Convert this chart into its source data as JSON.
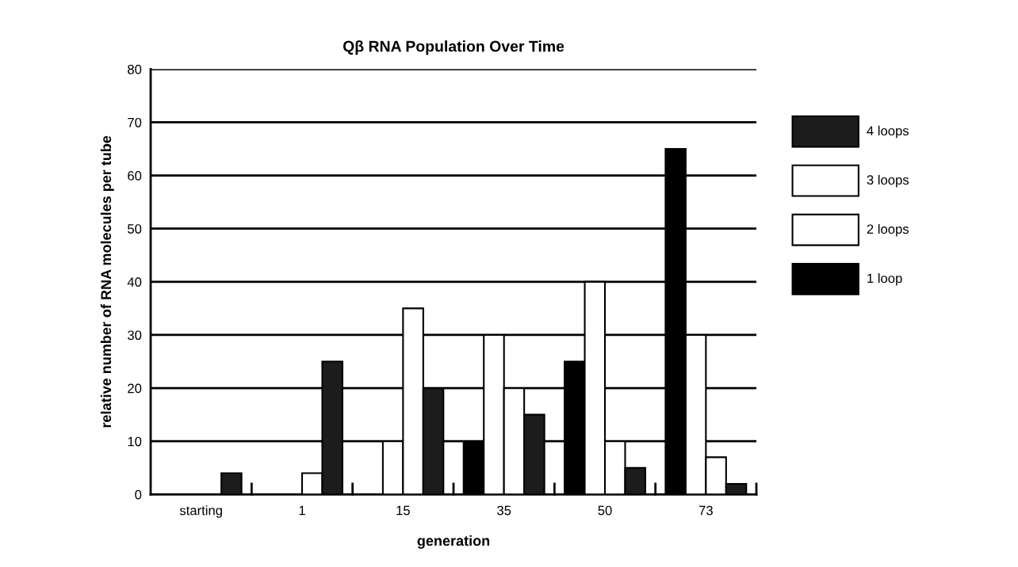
{
  "chart_data": {
    "type": "bar",
    "title": "Qβ RNA Population Over Time",
    "xlabel": "generation",
    "ylabel": "relative number of RNA molecules per tube",
    "categories": [
      "starting",
      "1",
      "15",
      "35",
      "50",
      "73"
    ],
    "series": [
      {
        "name": "1 loop",
        "color": "#000000",
        "values": [
          0,
          0,
          0,
          10,
          25,
          65
        ]
      },
      {
        "name": "2 loops",
        "color": "#ffffff",
        "values": [
          0,
          0,
          10,
          30,
          40,
          30
        ]
      },
      {
        "name": "3 loops",
        "color": "#ffffff",
        "values": [
          0,
          4,
          35,
          20,
          10,
          7
        ]
      },
      {
        "name": "4 loops",
        "color": "#1c1c1c",
        "values": [
          4,
          25,
          20,
          15,
          5,
          2
        ]
      }
    ],
    "ylim": [
      0,
      80
    ],
    "yticks": [
      0,
      10,
      20,
      30,
      40,
      50,
      60,
      70,
      80
    ],
    "grid": "y",
    "legend": "right"
  }
}
